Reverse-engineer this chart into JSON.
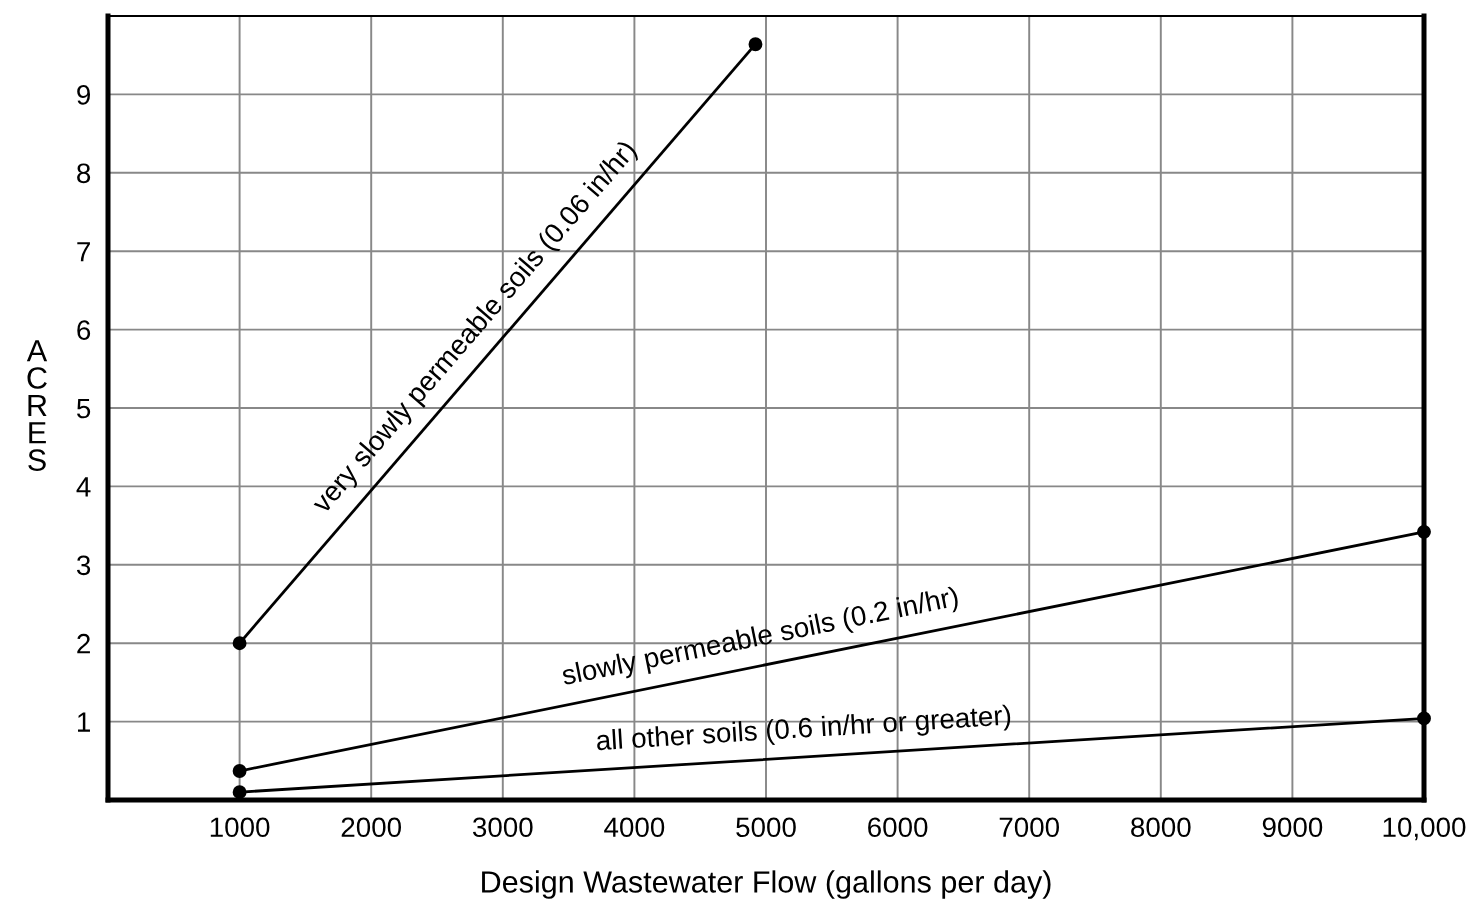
{
  "chart_data": {
    "type": "line",
    "xlabel": "Design Wastewater Flow (gallons per day)",
    "ylabel": "ACRES",
    "xlim": [
      0,
      10000
    ],
    "ylim": [
      0,
      10
    ],
    "xticks": [
      1000,
      2000,
      3000,
      4000,
      5000,
      6000,
      7000,
      8000,
      9000,
      {
        "value": 10000,
        "label": "10,000"
      }
    ],
    "yticks": [
      1,
      2,
      3,
      4,
      5,
      6,
      7,
      8,
      9
    ],
    "grid": true,
    "marker": "circle",
    "line_style": "solid",
    "series": [
      {
        "color": "#000000",
        "x": [
          1000,
          4920
        ],
        "values": [
          2.0,
          9.64
        ]
      },
      {
        "color": "#000000",
        "x": [
          1000,
          10000
        ],
        "values": [
          0.37,
          3.42
        ]
      },
      {
        "color": "#000000",
        "x": [
          1000,
          10000
        ],
        "values": [
          0.1,
          1.04
        ]
      }
    ],
    "annotations": [
      {
        "text": "very slowly permeable soils (0.06 in/hr)",
        "x": 2950,
        "y": 5.8
      },
      {
        "text": "slowly permeable soils (0.2 in/hr)",
        "x": 5000,
        "y": 1.73
      },
      {
        "text": "all other soils (0.6 in/hr or greater)",
        "x": 5300,
        "y": 0.55
      }
    ]
  }
}
